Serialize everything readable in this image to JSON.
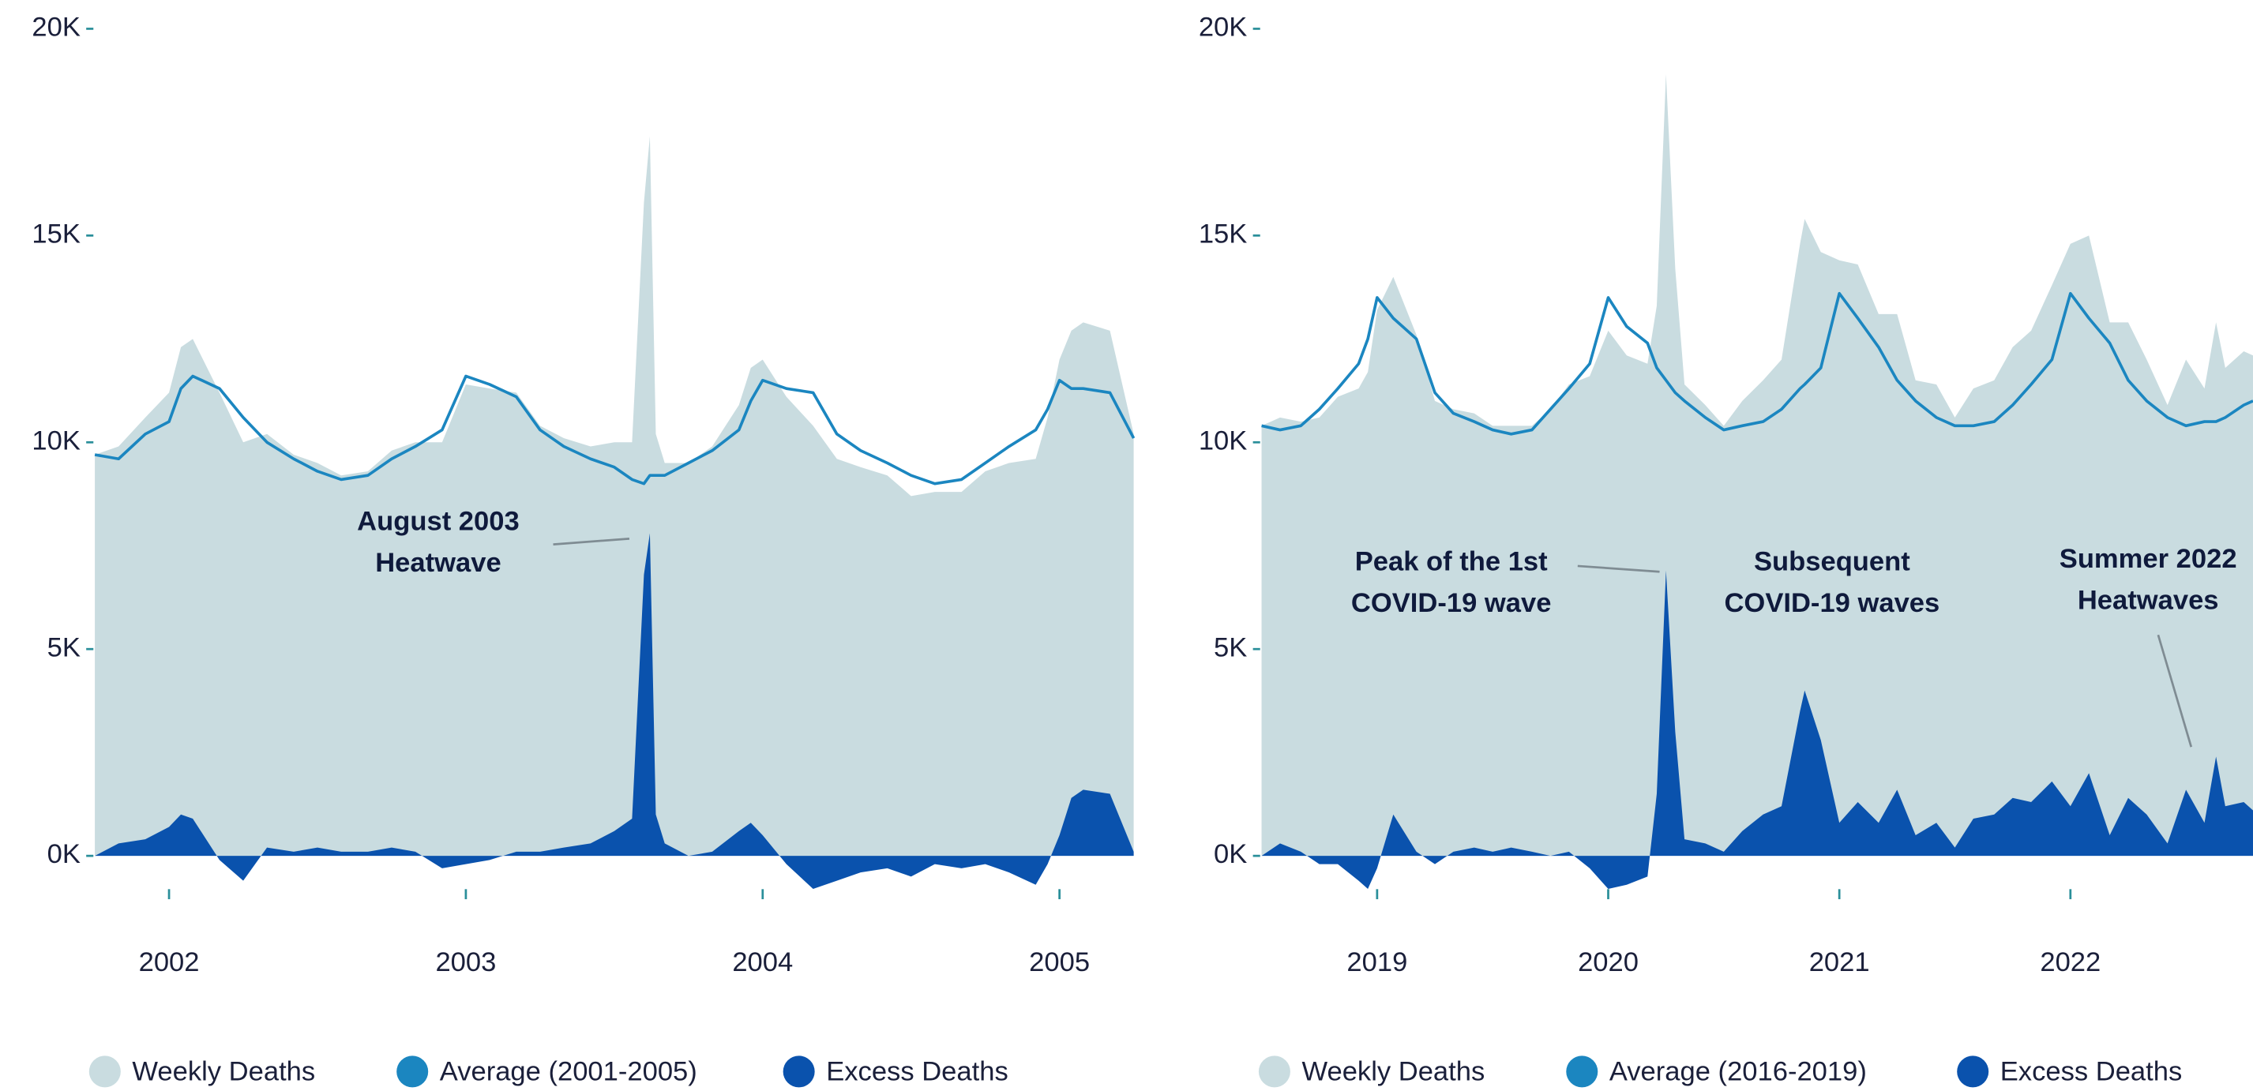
{
  "chart_data": [
    {
      "type": "area",
      "x": [
        2001.75,
        2001.83,
        2001.92,
        2002.0,
        2002.04,
        2002.08,
        2002.17,
        2002.25,
        2002.33,
        2002.42,
        2002.5,
        2002.58,
        2002.67,
        2002.75,
        2002.83,
        2002.92,
        2003.0,
        2003.08,
        2003.17,
        2003.25,
        2003.33,
        2003.42,
        2003.5,
        2003.56,
        2003.6,
        2003.62,
        2003.64,
        2003.67,
        2003.75,
        2003.83,
        2003.92,
        2003.96,
        2004.0,
        2004.08,
        2004.17,
        2004.25,
        2004.33,
        2004.42,
        2004.5,
        2004.58,
        2004.67,
        2004.75,
        2004.83,
        2004.92,
        2004.96,
        2005.0,
        2005.04,
        2005.08,
        2005.17,
        2005.25
      ],
      "series": [
        {
          "name": "Weekly Deaths",
          "style": "area",
          "color": "#c9dce0",
          "values": [
            9700,
            9900,
            10600,
            11200,
            12300,
            12500,
            11200,
            10000,
            10200,
            9700,
            9500,
            9200,
            9300,
            9800,
            10000,
            10000,
            11400,
            11300,
            11200,
            10400,
            10100,
            9900,
            10000,
            10000,
            15800,
            17400,
            10200,
            9500,
            9500,
            9900,
            10900,
            11800,
            12000,
            11100,
            10400,
            9600,
            9400,
            9200,
            8700,
            8800,
            8800,
            9300,
            9500,
            9600,
            10600,
            12000,
            12700,
            12900,
            12700,
            10200
          ]
        },
        {
          "name": "Average (2001-2005)",
          "style": "line",
          "color": "#1b86c0",
          "values": [
            9700,
            9600,
            10200,
            10500,
            11300,
            11600,
            11300,
            10600,
            10000,
            9600,
            9300,
            9100,
            9200,
            9600,
            9900,
            10300,
            11600,
            11400,
            11100,
            10300,
            9900,
            9600,
            9400,
            9100,
            9000,
            9200,
            9200,
            9200,
            9500,
            9800,
            10300,
            11000,
            11500,
            11300,
            11200,
            10200,
            9800,
            9500,
            9200,
            9000,
            9100,
            9500,
            9900,
            10300,
            10800,
            11500,
            11300,
            11300,
            11200,
            10100
          ]
        },
        {
          "name": "Excess Deaths",
          "style": "area",
          "color": "#0a52ad",
          "values": [
            0,
            300,
            400,
            700,
            1000,
            900,
            -100,
            -600,
            200,
            100,
            200,
            100,
            100,
            200,
            100,
            -300,
            -200,
            -100,
            100,
            100,
            200,
            300,
            600,
            900,
            6800,
            7800,
            1000,
            300,
            0,
            100,
            600,
            800,
            500,
            -200,
            -800,
            -600,
            -400,
            -300,
            -500,
            -200,
            -300,
            -200,
            -400,
            -700,
            -200,
            500,
            1400,
            1600,
            1500,
            100
          ]
        }
      ],
      "xlim": [
        2001.75,
        2005.25
      ],
      "xticks": [
        2002,
        2003,
        2004,
        2005
      ],
      "ylim": [
        -1500,
        20000
      ],
      "yticks": [
        {
          "value": 0,
          "label": "0K"
        },
        {
          "value": 5000,
          "label": "5K"
        },
        {
          "value": 10000,
          "label": "10K"
        },
        {
          "value": 15000,
          "label": "15K"
        },
        {
          "value": 20000,
          "label": "20K"
        }
      ],
      "annotations": [
        {
          "text": [
            "August 2003",
            "Heatwave"
          ]
        }
      ]
    },
    {
      "type": "area",
      "x": [
        2018.5,
        2018.58,
        2018.67,
        2018.75,
        2018.83,
        2018.92,
        2018.96,
        2019.0,
        2019.07,
        2019.17,
        2019.25,
        2019.33,
        2019.42,
        2019.5,
        2019.58,
        2019.67,
        2019.75,
        2019.83,
        2019.92,
        2020.0,
        2020.08,
        2020.17,
        2020.21,
        2020.25,
        2020.29,
        2020.33,
        2020.42,
        2020.5,
        2020.58,
        2020.67,
        2020.75,
        2020.83,
        2020.85,
        2020.92,
        2021.0,
        2021.08,
        2021.17,
        2021.25,
        2021.33,
        2021.42,
        2021.5,
        2021.58,
        2021.67,
        2021.75,
        2021.83,
        2021.92,
        2022.0,
        2022.08,
        2022.17,
        2022.25,
        2022.33,
        2022.42,
        2022.5,
        2022.58,
        2022.63,
        2022.67,
        2022.75,
        2022.79
      ],
      "series": [
        {
          "name": "Weekly Deaths",
          "style": "area",
          "color": "#c9dce0",
          "values": [
            10400,
            10600,
            10500,
            10600,
            11100,
            11300,
            11700,
            13200,
            14000,
            12600,
            11000,
            10800,
            10700,
            10400,
            10400,
            10400,
            10800,
            11400,
            11600,
            12700,
            12100,
            11900,
            13300,
            18900,
            14200,
            11400,
            10900,
            10400,
            11000,
            11500,
            12000,
            14800,
            15400,
            14600,
            14400,
            14300,
            13100,
            13100,
            11500,
            11400,
            10600,
            11300,
            11500,
            12300,
            12700,
            13800,
            14800,
            15000,
            12900,
            12900,
            12000,
            10900,
            12000,
            11300,
            12900,
            11800,
            12200,
            12100
          ]
        },
        {
          "name": "Average (2016-2019)",
          "style": "line",
          "color": "#1b86c0",
          "values": [
            10400,
            10300,
            10400,
            10800,
            11300,
            11900,
            12500,
            13500,
            13000,
            12500,
            11200,
            10700,
            10500,
            10300,
            10200,
            10300,
            10800,
            11300,
            11900,
            13500,
            12800,
            12400,
            11800,
            11500,
            11200,
            11000,
            10600,
            10300,
            10400,
            10500,
            10800,
            11300,
            11400,
            11800,
            13600,
            13000,
            12300,
            11500,
            11000,
            10600,
            10400,
            10400,
            10500,
            10900,
            11400,
            12000,
            13600,
            13000,
            12400,
            11500,
            11000,
            10600,
            10400,
            10500,
            10500,
            10600,
            10900,
            11000
          ]
        },
        {
          "name": "Excess Deaths",
          "style": "area",
          "color": "#0a52ad",
          "values": [
            0,
            300,
            100,
            -200,
            -200,
            -600,
            -800,
            -300,
            1000,
            100,
            -200,
            100,
            200,
            100,
            200,
            100,
            0,
            100,
            -300,
            -800,
            -700,
            -500,
            1500,
            6900,
            3000,
            400,
            300,
            100,
            600,
            1000,
            1200,
            3500,
            4000,
            2800,
            800,
            1300,
            800,
            1600,
            500,
            800,
            200,
            900,
            1000,
            1400,
            1300,
            1800,
            1200,
            2000,
            500,
            1400,
            1000,
            300,
            1600,
            800,
            2400,
            1200,
            1300,
            1100
          ]
        }
      ],
      "xlim": [
        2018.5,
        2022.79
      ],
      "xticks": [
        2019,
        2020,
        2021,
        2022
      ],
      "ylim": [
        -1500,
        20000
      ],
      "yticks": [
        {
          "value": 0,
          "label": "0K"
        },
        {
          "value": 5000,
          "label": "5K"
        },
        {
          "value": 10000,
          "label": "10K"
        },
        {
          "value": 15000,
          "label": "15K"
        },
        {
          "value": 20000,
          "label": "20K"
        }
      ],
      "annotations": [
        {
          "text": [
            "Peak of the 1st",
            "COVID-19 wave"
          ]
        },
        {
          "text": [
            "Subsequent",
            "COVID-19 waves"
          ]
        },
        {
          "text": [
            "Summer 2022",
            "Heatwaves"
          ]
        }
      ]
    }
  ]
}
